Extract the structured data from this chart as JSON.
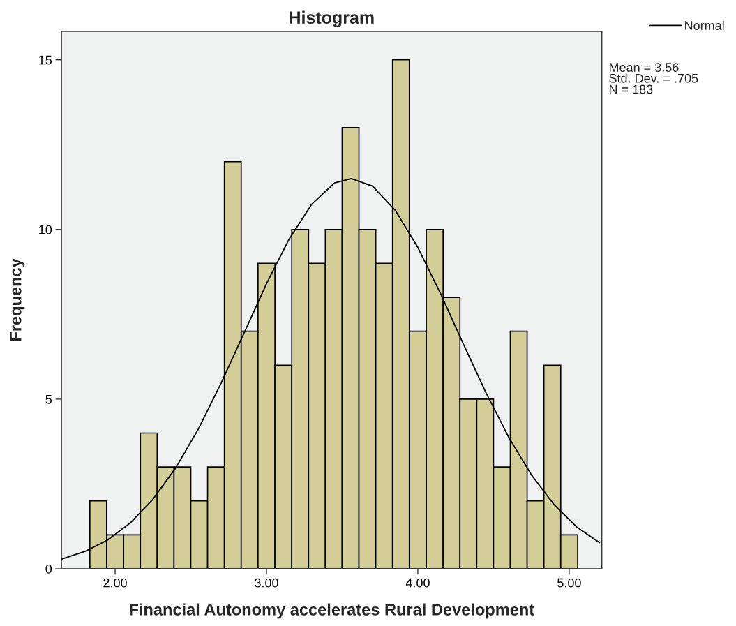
{
  "chart_data": {
    "type": "histogram",
    "title": "Histogram",
    "xlabel": "Financial Autonomy accelerates Rural Development",
    "ylabel": "Frequency",
    "bins": [
      1.833,
      1.944,
      2.056,
      2.167,
      2.278,
      2.389,
      2.5,
      2.611,
      2.722,
      2.833,
      2.944,
      3.056,
      3.167,
      3.278,
      3.389,
      3.5,
      3.611,
      3.722,
      3.833,
      3.944,
      4.056,
      4.167,
      4.278,
      4.389,
      4.5,
      4.611,
      4.722,
      4.833,
      4.944,
      5.056
    ],
    "values": [
      2,
      1,
      1,
      4,
      3,
      3,
      2,
      3,
      12,
      7,
      9,
      6,
      10,
      9,
      10,
      13,
      10,
      9,
      15,
      7,
      10,
      8,
      5,
      5,
      3,
      7,
      2,
      6,
      1
    ],
    "color": "#d3ce97",
    "series": [
      {
        "name": "Normal",
        "type": "line",
        "color": "#000000",
        "x": [
          1.65,
          1.8,
          1.95,
          2.1,
          2.25,
          2.4,
          2.55,
          2.7,
          2.85,
          3.0,
          3.15,
          3.3,
          3.45,
          3.56,
          3.7,
          3.85,
          4.0,
          4.15,
          4.3,
          4.45,
          4.6,
          4.75,
          4.9,
          5.05,
          5.2
        ],
        "values": [
          0.29,
          0.51,
          0.85,
          1.35,
          2.05,
          2.97,
          4.12,
          5.47,
          6.93,
          8.4,
          9.72,
          10.75,
          11.37,
          11.5,
          11.28,
          10.57,
          9.47,
          8.11,
          6.63,
          5.19,
          3.88,
          2.77,
          1.89,
          1.23,
          0.77
        ]
      }
    ],
    "xlim": [
      1.645,
      5.215
    ],
    "xticks": [
      {
        "value": 2,
        "label": "2.00"
      },
      {
        "value": 3,
        "label": "3.00"
      },
      {
        "value": 4,
        "label": "4.00"
      },
      {
        "value": 5,
        "label": "5.00"
      }
    ],
    "ylim": [
      0,
      15.84
    ],
    "yticks": [
      0,
      5,
      10,
      15
    ],
    "grid": false,
    "legend": "top right",
    "annotations": [
      "Mean = 3.56",
      "Std. Dev. = .705",
      "N = 183"
    ]
  }
}
